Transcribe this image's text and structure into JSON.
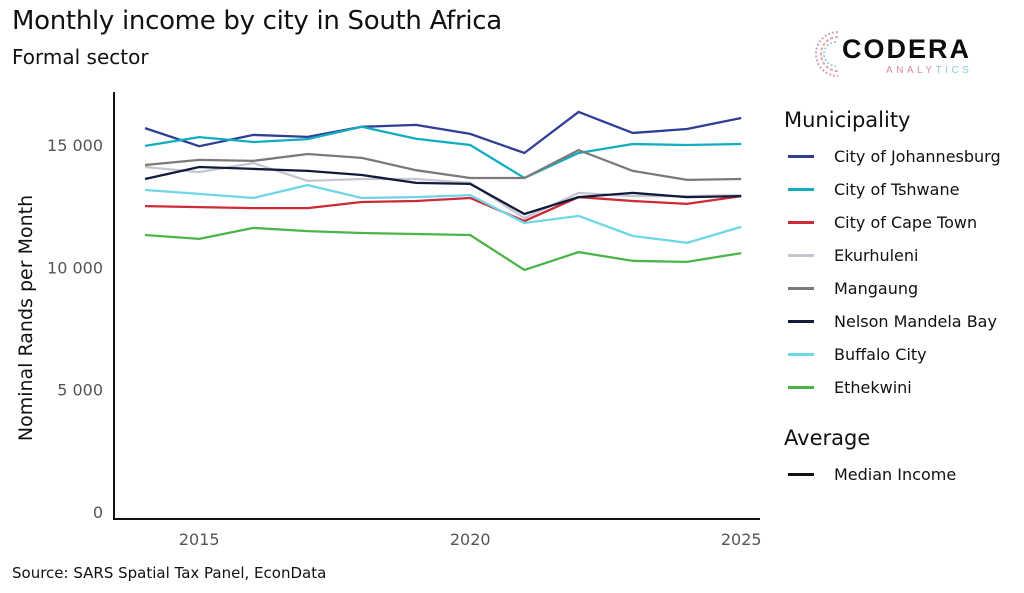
{
  "header": {
    "title": "Monthly income by city in South Africa",
    "subtitle": "Formal sector"
  },
  "logo": {
    "name": "CODERA",
    "tagline_part1": "ANALY",
    "tagline_part2": "TICS"
  },
  "source": "Source: SARS Spatial Tax Panel, EconData",
  "legend": {
    "group1_title": "Municipality",
    "group2_title": "Average",
    "items": [
      {
        "label": "City of Johannesburg",
        "color": "#2e3f94"
      },
      {
        "label": "City of Tshwane",
        "color": "#13adc1"
      },
      {
        "label": "City of Cape Town",
        "color": "#cc2a36"
      },
      {
        "label": "Ekurhuleni",
        "color": "#c3c7cf"
      },
      {
        "label": "Mangaung",
        "color": "#7a7a7a"
      },
      {
        "label": "Nelson Mandela Bay",
        "color": "#141a3c"
      },
      {
        "label": "Buffalo City",
        "color": "#6fd6e8"
      },
      {
        "label": "Ethekwini",
        "color": "#4bb54a"
      }
    ],
    "average_items": [
      {
        "label": "Median Income",
        "color": "#111111"
      }
    ]
  },
  "chart_data": {
    "type": "line",
    "title": "Monthly income by city in South Africa",
    "subtitle": "Formal sector",
    "xlabel": "",
    "ylabel": "Nominal Rands per Month",
    "x": [
      2014,
      2015,
      2016,
      2017,
      2018,
      2019,
      2020,
      2021,
      2022,
      2023,
      2024,
      2025
    ],
    "xlim": [
      2013.8,
      2025.5
    ],
    "ylim": [
      0,
      17300
    ],
    "xticks": [
      2015,
      2020,
      2025
    ],
    "xtick_labels": [
      "2015",
      "2020",
      "2025"
    ],
    "yticks": [
      0,
      5000,
      10000,
      15000
    ],
    "ytick_labels": [
      "0",
      "5 000",
      "10 000",
      "15 000"
    ],
    "grid": false,
    "legend_position": "right",
    "series": [
      {
        "name": "City of Johannesburg",
        "color": "#2e3f94",
        "values": [
          15690,
          14950,
          15410,
          15330,
          15740,
          15820,
          15450,
          14670,
          16350,
          15490,
          15650,
          16100
        ]
      },
      {
        "name": "City of Tshwane",
        "color": "#13adc1",
        "values": [
          14960,
          15320,
          15120,
          15240,
          15740,
          15250,
          15000,
          13650,
          14670,
          15040,
          15000,
          15040
        ]
      },
      {
        "name": "City of Cape Town",
        "color": "#cc2a36",
        "values": [
          12500,
          12460,
          12420,
          12420,
          12670,
          12710,
          12830,
          11890,
          12870,
          12710,
          12590,
          12910
        ]
      },
      {
        "name": "Ekurhuleni",
        "color": "#c3c7cf",
        "values": [
          14100,
          13890,
          14260,
          13530,
          13610,
          13610,
          13450,
          12010,
          13040,
          12910,
          12910,
          12950
        ]
      },
      {
        "name": "Mangaung",
        "color": "#7a7a7a",
        "values": [
          14180,
          14390,
          14350,
          14630,
          14470,
          13970,
          13650,
          13650,
          14790,
          13940,
          13570,
          13610
        ]
      },
      {
        "name": "Nelson Mandela Bay",
        "color": "#141a3c",
        "values": [
          13610,
          14100,
          14020,
          13940,
          13770,
          13450,
          13410,
          12180,
          12870,
          13040,
          12870,
          12910
        ]
      },
      {
        "name": "Buffalo City",
        "color": "#6fd6e8",
        "values": [
          13160,
          13000,
          12830,
          13360,
          12830,
          12870,
          12950,
          11810,
          12100,
          11280,
          11000,
          11650
        ]
      },
      {
        "name": "Ethekwini",
        "color": "#4bb54a",
        "values": [
          11320,
          11160,
          11610,
          11480,
          11400,
          11360,
          11320,
          9890,
          10620,
          10260,
          10220,
          10580
        ]
      }
    ]
  }
}
